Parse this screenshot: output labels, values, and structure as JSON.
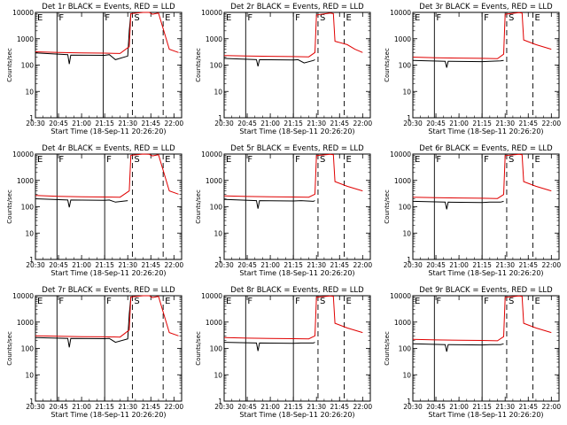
{
  "chart_data": {
    "type": "line",
    "yscale": "log",
    "ylim": [
      1,
      10000
    ],
    "xlim": [
      "20:30",
      "22:05"
    ],
    "xticks": [
      "20:30",
      "20:45",
      "21:00",
      "21:15",
      "21:30",
      "21:45",
      "22:00"
    ],
    "yticks": [
      "1",
      "10",
      "100",
      "1000",
      "10000"
    ],
    "ylabel": "Counts/sec",
    "xlabel": "Start Time (18-Sep-11 20:26:20)",
    "colors": {
      "black_series": "#000000",
      "red_series": "#e00000"
    },
    "panels": [
      {
        "title": "Det 1r BLACK = Events, RED = LLD",
        "series": [
          {
            "name": "Events",
            "color": "black",
            "x": [
              "20:30",
              "20:51",
              "20:52",
              "20:53",
              "21:15",
              "21:18",
              "21:22",
              "21:30",
              "21:31",
              "21:32"
            ],
            "y": [
              290,
              250,
              110,
              240,
              235,
              250,
              160,
              220,
              2000,
              9000
            ]
          },
          {
            "name": "LLD",
            "color": "red",
            "x": [
              "20:30",
              "20:45",
              "21:00",
              "21:15",
              "21:25",
              "21:31",
              "21:32",
              "21:40",
              "21:44",
              "21:46",
              "21:50",
              "21:57",
              "22:03"
            ],
            "y": [
              320,
              300,
              290,
              285,
              275,
              500,
              9000,
              10000,
              10000,
              8500,
              9500,
              400,
              300
            ]
          }
        ],
        "markers": [
          {
            "label": "E",
            "x": "20:30",
            "style": "solid"
          },
          {
            "label": "F",
            "x": "20:44",
            "style": "solid"
          },
          {
            "label": "F",
            "x": "21:14",
            "style": "solid"
          },
          {
            "label": "S",
            "x": "21:33",
            "style": "dashed"
          },
          {
            "label": "E",
            "x": "21:53",
            "style": "dashed"
          }
        ]
      },
      {
        "title": "Det 2r BLACK = Events, RED = LLD",
        "series": [
          {
            "name": "Events",
            "color": "black",
            "x": [
              "20:30",
              "20:51",
              "20:52",
              "20:53",
              "21:15",
              "21:18",
              "21:22",
              "21:28",
              "21:29"
            ],
            "y": [
              180,
              160,
              90,
              160,
              155,
              160,
              120,
              150,
              160
            ]
          },
          {
            "name": "LLD",
            "color": "red",
            "x": [
              "20:30",
              "20:45",
              "21:00",
              "21:15",
              "21:25",
              "21:29",
              "21:30",
              "21:39",
              "21:41",
              "21:42",
              "21:50",
              "21:55",
              "22:00"
            ],
            "y": [
              230,
              220,
              215,
              210,
              205,
              300,
              8000,
              9500,
              9000,
              800,
              600,
              400,
              300
            ]
          }
        ],
        "markers": [
          {
            "label": "E",
            "x": "20:30",
            "style": "solid"
          },
          {
            "label": "F",
            "x": "20:44",
            "style": "solid"
          },
          {
            "label": "F",
            "x": "21:15",
            "style": "solid"
          },
          {
            "label": "S",
            "x": "21:31",
            "style": "dashed"
          },
          {
            "label": "E",
            "x": "21:48",
            "style": "dashed"
          }
        ]
      },
      {
        "title": "Det 3r BLACK = Events, RED = LLD",
        "series": [
          {
            "name": "Events",
            "color": "black",
            "x": [
              "20:30",
              "20:51",
              "20:52",
              "20:53",
              "21:15",
              "21:20",
              "21:27",
              "21:29"
            ],
            "y": [
              150,
              140,
              80,
              140,
              135,
              140,
              145,
              150
            ]
          },
          {
            "name": "LLD",
            "color": "red",
            "x": [
              "20:30",
              "20:45",
              "21:00",
              "21:15",
              "21:25",
              "21:29",
              "21:30",
              "21:39",
              "21:41",
              "21:42",
              "21:50",
              "22:00"
            ],
            "y": [
              200,
              190,
              185,
              180,
              175,
              260,
              8500,
              9800,
              9500,
              900,
              600,
              400
            ]
          }
        ],
        "markers": [
          {
            "label": "E",
            "x": "20:30",
            "style": "solid"
          },
          {
            "label": "F",
            "x": "20:44",
            "style": "solid"
          },
          {
            "label": "F",
            "x": "21:15",
            "style": "solid"
          },
          {
            "label": "S",
            "x": "21:31",
            "style": "dashed"
          },
          {
            "label": "E",
            "x": "21:48",
            "style": "dashed"
          }
        ]
      },
      {
        "title": "Det 4r BLACK = Events, RED = LLD",
        "series": [
          {
            "name": "Events",
            "color": "black",
            "x": [
              "20:30",
              "20:51",
              "20:52",
              "20:53",
              "21:15",
              "21:18",
              "21:22",
              "21:30"
            ],
            "y": [
              200,
              180,
              95,
              180,
              175,
              180,
              150,
              170
            ]
          },
          {
            "name": "LLD",
            "color": "red",
            "x": [
              "20:30",
              "20:45",
              "21:00",
              "21:15",
              "21:25",
              "21:31",
              "21:32",
              "21:40",
              "21:44",
              "21:46",
              "21:50",
              "21:57",
              "22:03"
            ],
            "y": [
              270,
              250,
              240,
              235,
              230,
              400,
              9000,
              10000,
              9800,
              8500,
              9500,
              400,
              300
            ]
          }
        ],
        "markers": [
          {
            "label": "E",
            "x": "20:30",
            "style": "solid"
          },
          {
            "label": "F",
            "x": "20:44",
            "style": "solid"
          },
          {
            "label": "F",
            "x": "21:15",
            "style": "solid"
          },
          {
            "label": "S",
            "x": "21:33",
            "style": "dashed"
          },
          {
            "label": "E",
            "x": "21:53",
            "style": "dashed"
          }
        ]
      },
      {
        "title": "Det 5r BLACK = Events, RED = LLD",
        "series": [
          {
            "name": "Events",
            "color": "black",
            "x": [
              "20:30",
              "20:51",
              "20:52",
              "20:53",
              "21:15",
              "21:20",
              "21:28",
              "21:29"
            ],
            "y": [
              190,
              170,
              85,
              170,
              165,
              170,
              160,
              170
            ]
          },
          {
            "name": "LLD",
            "color": "red",
            "x": [
              "20:30",
              "20:45",
              "21:00",
              "21:15",
              "21:25",
              "21:29",
              "21:30",
              "21:39",
              "21:41",
              "21:42",
              "21:50",
              "22:00"
            ],
            "y": [
              260,
              245,
              240,
              235,
              230,
              300,
              8800,
              9800,
              9500,
              900,
              600,
              400
            ]
          }
        ],
        "markers": [
          {
            "label": "E",
            "x": "20:30",
            "style": "solid"
          },
          {
            "label": "F",
            "x": "20:44",
            "style": "solid"
          },
          {
            "label": "F",
            "x": "21:15",
            "style": "solid"
          },
          {
            "label": "S",
            "x": "21:31",
            "style": "dashed"
          },
          {
            "label": "E",
            "x": "21:48",
            "style": "dashed"
          }
        ]
      },
      {
        "title": "Det 6r BLACK = Events, RED = LLD",
        "series": [
          {
            "name": "Events",
            "color": "black",
            "x": [
              "20:30",
              "20:51",
              "20:52",
              "20:53",
              "21:15",
              "21:20",
              "21:27",
              "21:29"
            ],
            "y": [
              160,
              150,
              80,
              150,
              145,
              150,
              150,
              160
            ]
          },
          {
            "name": "LLD",
            "color": "red",
            "x": [
              "20:30",
              "20:45",
              "21:00",
              "21:15",
              "21:25",
              "21:29",
              "21:30",
              "21:39",
              "21:41",
              "21:42",
              "21:50",
              "22:00"
            ],
            "y": [
              230,
              220,
              215,
              210,
              205,
              290,
              8700,
              9800,
              9500,
              900,
              600,
              400
            ]
          }
        ],
        "markers": [
          {
            "label": "E",
            "x": "20:30",
            "style": "solid"
          },
          {
            "label": "F",
            "x": "20:44",
            "style": "solid"
          },
          {
            "label": "F",
            "x": "21:15",
            "style": "solid"
          },
          {
            "label": "S",
            "x": "21:31",
            "style": "dashed"
          },
          {
            "label": "E",
            "x": "21:48",
            "style": "dashed"
          }
        ]
      },
      {
        "title": "Det 7r BLACK = Events, RED = LLD",
        "series": [
          {
            "name": "Events",
            "color": "black",
            "x": [
              "20:30",
              "20:51",
              "20:52",
              "20:53",
              "21:15",
              "21:18",
              "21:22",
              "21:30",
              "21:31",
              "21:32"
            ],
            "y": [
              260,
              240,
              110,
              240,
              235,
              240,
              170,
              230,
              2000,
              9000
            ]
          },
          {
            "name": "LLD",
            "color": "red",
            "x": [
              "20:30",
              "20:45",
              "21:00",
              "21:15",
              "21:25",
              "21:31",
              "21:32",
              "21:40",
              "21:44",
              "21:46",
              "21:50",
              "21:57",
              "22:03"
            ],
            "y": [
              300,
              290,
              280,
              275,
              270,
              500,
              9000,
              10000,
              10000,
              8500,
              9500,
              400,
              300
            ]
          }
        ],
        "markers": [
          {
            "label": "E",
            "x": "20:30",
            "style": "solid"
          },
          {
            "label": "F",
            "x": "20:44",
            "style": "solid"
          },
          {
            "label": "F",
            "x": "21:15",
            "style": "solid"
          },
          {
            "label": "S",
            "x": "21:33",
            "style": "dashed"
          },
          {
            "label": "E",
            "x": "21:53",
            "style": "dashed"
          }
        ]
      },
      {
        "title": "Det 8r BLACK = Events, RED = LLD",
        "series": [
          {
            "name": "Events",
            "color": "black",
            "x": [
              "20:30",
              "20:51",
              "20:52",
              "20:53",
              "21:15",
              "21:20",
              "21:28",
              "21:29"
            ],
            "y": [
              170,
              160,
              80,
              160,
              155,
              160,
              160,
              170
            ]
          },
          {
            "name": "LLD",
            "color": "red",
            "x": [
              "20:30",
              "20:45",
              "21:00",
              "21:15",
              "21:25",
              "21:29",
              "21:30",
              "21:39",
              "21:41",
              "21:42",
              "21:50",
              "22:00"
            ],
            "y": [
              260,
              245,
              240,
              235,
              230,
              300,
              8800,
              9800,
              9500,
              900,
              600,
              400
            ]
          }
        ],
        "markers": [
          {
            "label": "E",
            "x": "20:30",
            "style": "solid"
          },
          {
            "label": "F",
            "x": "20:44",
            "style": "solid"
          },
          {
            "label": "F",
            "x": "21:15",
            "style": "solid"
          },
          {
            "label": "S",
            "x": "21:31",
            "style": "dashed"
          },
          {
            "label": "E",
            "x": "21:48",
            "style": "dashed"
          }
        ]
      },
      {
        "title": "Det 9r BLACK = Events, RED = LLD",
        "series": [
          {
            "name": "Events",
            "color": "black",
            "x": [
              "20:30",
              "20:51",
              "20:52",
              "20:53",
              "21:15",
              "21:20",
              "21:27",
              "21:29"
            ],
            "y": [
              150,
              140,
              75,
              140,
              135,
              140,
              140,
              150
            ]
          },
          {
            "name": "LLD",
            "color": "red",
            "x": [
              "20:30",
              "20:45",
              "21:00",
              "21:15",
              "21:25",
              "21:29",
              "21:30",
              "21:39",
              "21:41",
              "21:42",
              "21:50",
              "22:00"
            ],
            "y": [
              220,
              210,
              205,
              200,
              195,
              280,
              8600,
              9800,
              9500,
              900,
              600,
              400
            ]
          }
        ],
        "markers": [
          {
            "label": "E",
            "x": "20:30",
            "style": "solid"
          },
          {
            "label": "F",
            "x": "20:44",
            "style": "solid"
          },
          {
            "label": "F",
            "x": "21:15",
            "style": "solid"
          },
          {
            "label": "S",
            "x": "21:31",
            "style": "dashed"
          },
          {
            "label": "E",
            "x": "21:48",
            "style": "dashed"
          }
        ]
      }
    ]
  }
}
